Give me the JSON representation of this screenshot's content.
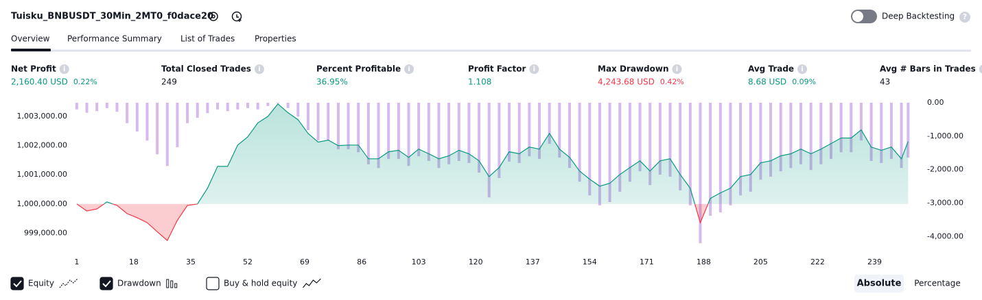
{
  "header": {
    "title": "Tuisku_BNBUSDT_30Min_2MT0_f0dace20",
    "toggle_label": "Deep Backtesting"
  },
  "tabs": [
    "Overview",
    "Performance Summary",
    "List of Trades",
    "Properties"
  ],
  "metrics": [
    {
      "label": "Net Profit",
      "value": "2,160.40 USD",
      "percent": "0.22%",
      "color": "#089981"
    },
    {
      "label": "Total Closed Trades",
      "value": "249",
      "color": "#131722"
    },
    {
      "label": "Percent Profitable",
      "value": "36.95%",
      "color": "#089981"
    },
    {
      "label": "Profit Factor",
      "value": "1.108",
      "color": "#089981"
    },
    {
      "label": "Max Drawdown",
      "value": "4,243.68 USD",
      "percent": "0.42%",
      "color": "#f23645"
    },
    {
      "label": "Avg Trade",
      "value": "8.68 USD",
      "percent": "0.09%",
      "color": "#089981"
    },
    {
      "label": "Avg # Bars in Trades",
      "value": "43",
      "color": "#131722"
    }
  ],
  "chart_data": {
    "type": "line",
    "x": [
      1,
      4,
      7,
      10,
      13,
      16,
      19,
      22,
      25,
      28,
      31,
      34,
      37,
      40,
      43,
      46,
      49,
      52,
      55,
      58,
      61,
      64,
      67,
      70,
      73,
      76,
      79,
      82,
      85,
      88,
      91,
      94,
      97,
      100,
      103,
      106,
      109,
      112,
      115,
      118,
      121,
      124,
      127,
      130,
      133,
      136,
      139,
      142,
      145,
      148,
      151,
      154,
      157,
      160,
      163,
      166,
      169,
      172,
      175,
      178,
      181,
      184,
      187,
      190,
      193,
      196,
      199,
      202,
      205,
      208,
      211,
      214,
      217,
      220,
      223,
      226,
      229,
      232,
      235,
      238,
      241,
      244,
      247,
      249
    ],
    "xlim": [
      0,
      252
    ],
    "xticks": [
      1,
      18,
      35,
      52,
      69,
      86,
      103,
      120,
      137,
      154,
      171,
      188,
      205,
      222,
      239
    ],
    "ylim": [
      998540,
      1003470
    ],
    "yticks": [
      {
        "value": 999000,
        "label": "999,000.00"
      },
      {
        "value": 1000000,
        "label": "1,000,000.00"
      },
      {
        "value": 1001000,
        "label": "1,001,000.00"
      },
      {
        "value": 1002000,
        "label": "1,002,000.00"
      },
      {
        "value": 1003000,
        "label": "1,003,000.00"
      }
    ],
    "y2lim": [
      -4300,
      0
    ],
    "y2ticks": [
      {
        "value": 0,
        "label": "0.00"
      },
      {
        "value": -1000,
        "label": "-1,000.00"
      },
      {
        "value": -2000,
        "label": "-2,000.00"
      },
      {
        "value": -3000,
        "label": "-3,000.00"
      },
      {
        "value": -4000,
        "label": "-4,000.00"
      }
    ],
    "baseline": 1000000,
    "series": [
      {
        "name": "Equity",
        "type": "line",
        "color": "#089981",
        "color_down": "#f23645",
        "visible": true,
        "values": [
          1000000,
          999760,
          999830,
          1000070,
          999950,
          999670,
          999530,
          999360,
          999050,
          998750,
          999440,
          999950,
          1000000,
          1000540,
          1001290,
          1001290,
          1002020,
          1002300,
          1002780,
          1003000,
          1003430,
          1003130,
          1002890,
          1002420,
          1002120,
          1002190,
          1002000,
          1002020,
          1002020,
          1001550,
          1001550,
          1001790,
          1001840,
          1001600,
          1001880,
          1001720,
          1001550,
          1001650,
          1001840,
          1001720,
          1001480,
          1000940,
          1001250,
          1001790,
          1001720,
          1001950,
          1001880,
          1002420,
          1001880,
          1001600,
          1001130,
          1000850,
          1000610,
          1000710,
          1001010,
          1001250,
          1001480,
          1001130,
          1001480,
          1001550,
          1001010,
          1000540,
          999360,
          1000190,
          1000380,
          1000540,
          1000940,
          1001010,
          1001410,
          1001480,
          1001650,
          1001720,
          1001880,
          1001720,
          1001880,
          1002070,
          1002260,
          1002260,
          1002540,
          1001950,
          1001840,
          1001950,
          1001550,
          1002140
        ]
      },
      {
        "name": "Drawdown",
        "type": "bar",
        "axis": "y2",
        "color": "#c49be6",
        "visible": true,
        "values": [
          -200,
          -300,
          -250,
          -160,
          -270,
          -610,
          -860,
          -1130,
          -1540,
          -1890,
          -1330,
          -610,
          -450,
          -310,
          -200,
          -250,
          -200,
          -160,
          -200,
          -100,
          -20,
          -160,
          -410,
          -820,
          -1130,
          -1130,
          -1390,
          -1390,
          -1480,
          -1840,
          -1950,
          -1680,
          -1680,
          -1890,
          -1600,
          -1740,
          -1950,
          -1840,
          -1740,
          -1800,
          -2090,
          -2830,
          -2250,
          -1760,
          -1800,
          -1600,
          -1680,
          -1230,
          -1640,
          -1950,
          -2360,
          -2770,
          -3070,
          -2970,
          -2660,
          -2360,
          -2050,
          -2460,
          -2150,
          -2210,
          -2620,
          -3070,
          -4200,
          -3380,
          -3280,
          -3070,
          -2770,
          -2660,
          -2300,
          -2210,
          -2050,
          -1950,
          -1840,
          -2010,
          -1840,
          -1680,
          -1480,
          -1480,
          -1130,
          -1740,
          -1800,
          -1680,
          -1950,
          -1640
        ]
      },
      {
        "name": "Buy & hold equity",
        "type": "line",
        "visible": false
      }
    ]
  },
  "footer": {
    "modes": [
      "Absolute",
      "Percentage"
    ]
  }
}
